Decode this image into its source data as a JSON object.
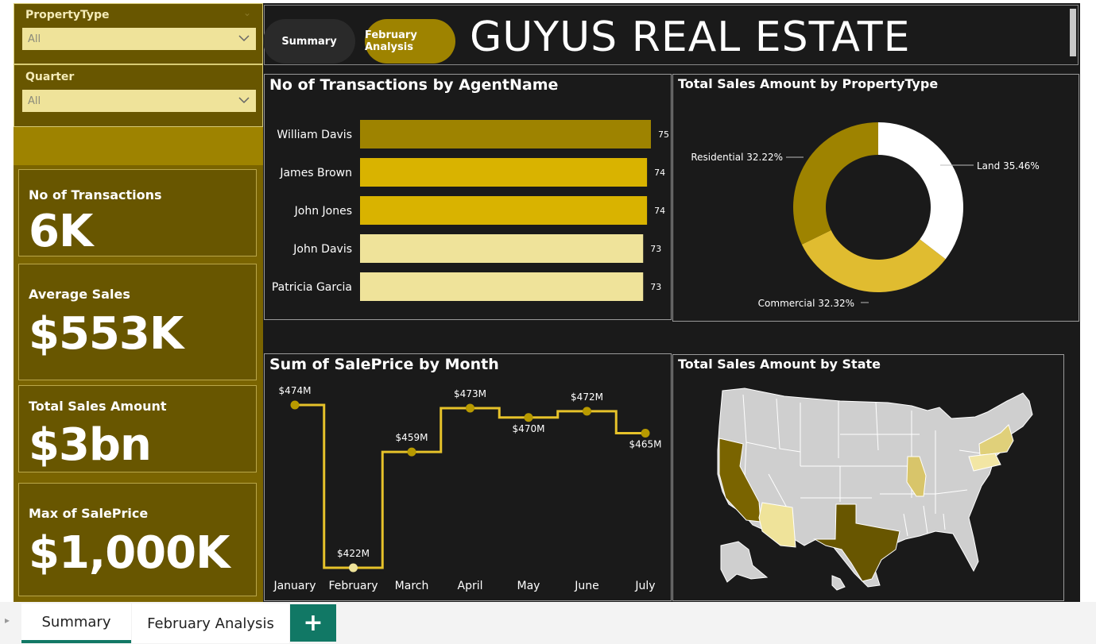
{
  "slicers": {
    "property_type": {
      "label": "PropertyType",
      "value": "All"
    },
    "quarter": {
      "label": "Quarter",
      "value": "All"
    }
  },
  "kpis": [
    {
      "title": "No of Transactions",
      "value": "6K"
    },
    {
      "title": "Average Sales",
      "value": "$553K"
    },
    {
      "title": "Total Sales Amount",
      "value": "$3bn"
    },
    {
      "title": "Max of SalePrice",
      "value": "$1,000K"
    }
  ],
  "header": {
    "title": "GUYUS REAL ESTATE",
    "nav": {
      "summary": "Summary",
      "february": "February Analysis"
    }
  },
  "colors": {
    "gold_dark": "#9e8300",
    "gold": "#d9b300",
    "gold_light": "#efe39a",
    "olive": "#685600",
    "teal": "#117865"
  },
  "charts": {
    "agent_title": "No of Transactions by AgentName",
    "property_title": "Total Sales Amount by PropertyType",
    "month_title": "Sum of SalePrice by Month",
    "state_title": "Total Sales Amount by State"
  },
  "chart_data": [
    {
      "type": "bar",
      "title": "No of Transactions by AgentName",
      "categories": [
        "William Davis",
        "James Brown",
        "John Jones",
        "John Davis",
        "Patricia Garcia"
      ],
      "values": [
        75,
        74,
        74,
        73,
        73
      ],
      "bar_colors": [
        "#9e8300",
        "#d9b300",
        "#d9b300",
        "#efe39a",
        "#efe39a"
      ]
    },
    {
      "type": "pie",
      "title": "Total Sales Amount by PropertyType",
      "labels": [
        "Land",
        "Commercial",
        "Residential"
      ],
      "values": [
        35.46,
        32.32,
        32.22
      ],
      "label_text": [
        "Land 35.46%",
        "Commercial 32.32%",
        "Residential 32.22%"
      ],
      "colors": [
        "#ffffff",
        "#e0bc30",
        "#9e8300"
      ]
    },
    {
      "type": "line",
      "title": "Sum of SalePrice by Month",
      "x": [
        "January",
        "February",
        "March",
        "April",
        "May",
        "June",
        "July"
      ],
      "values": [
        474,
        422,
        459,
        473,
        470,
        472,
        465
      ],
      "labels": [
        "$474M",
        "$422M",
        "$459M",
        "$473M",
        "$470M",
        "$472M",
        "$465M"
      ],
      "step": true
    }
  ],
  "map": {
    "highlighted_states": [
      {
        "state": "California",
        "color": "#7a6400"
      },
      {
        "state": "Texas",
        "color": "#685600"
      },
      {
        "state": "Arizona",
        "color": "#efe39a"
      },
      {
        "state": "Illinois",
        "color": "#d8c56a"
      },
      {
        "state": "New York",
        "color": "#e0d07a"
      },
      {
        "state": "Pennsylvania",
        "color": "#f2e6a4"
      }
    ]
  },
  "tabs": {
    "summary": "Summary",
    "february": "February Analysis",
    "add": "+"
  }
}
